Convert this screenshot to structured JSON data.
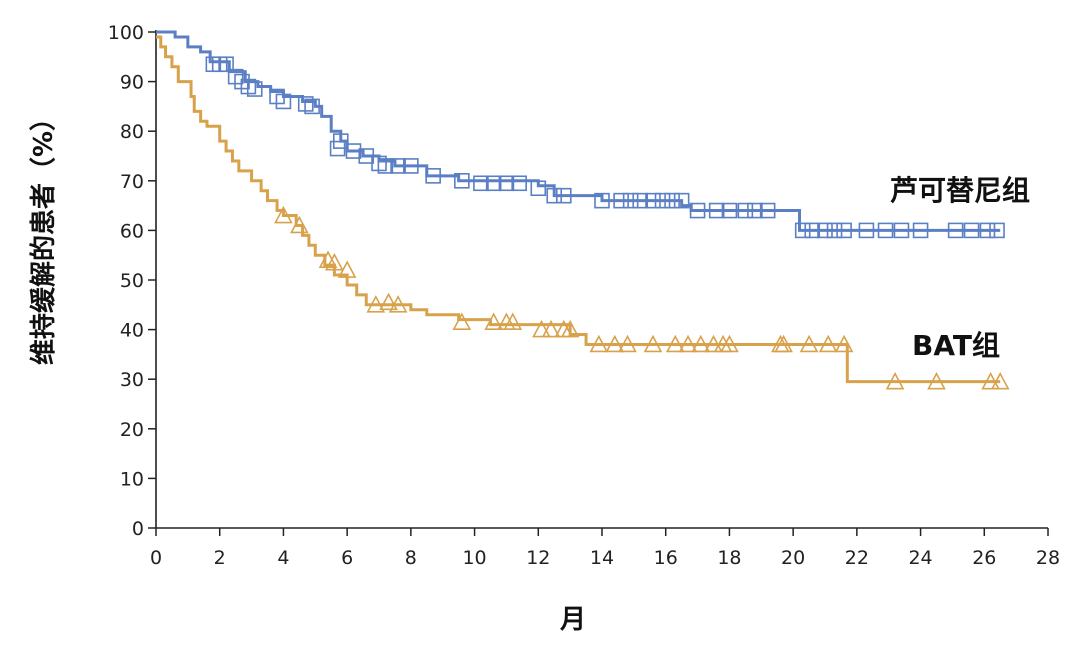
{
  "chart_data": {
    "type": "line",
    "title": "",
    "xlabel": "月",
    "ylabel": "维持缓解的患者（%）",
    "xlim": [
      0,
      28
    ],
    "ylim": [
      0,
      100
    ],
    "x_ticks": [
      0,
      2,
      4,
      6,
      8,
      10,
      12,
      14,
      16,
      18,
      20,
      22,
      24,
      26,
      28
    ],
    "y_ticks": [
      0,
      10,
      20,
      30,
      40,
      50,
      60,
      70,
      80,
      90,
      100
    ],
    "grid": false,
    "series": [
      {
        "name": "芦可替尼组",
        "color": "#5b7fc4",
        "marker": "square",
        "steps": [
          [
            0,
            100
          ],
          [
            0.6,
            99
          ],
          [
            1.0,
            97
          ],
          [
            1.4,
            96
          ],
          [
            1.7,
            94
          ],
          [
            2.3,
            92
          ],
          [
            2.8,
            90
          ],
          [
            3.2,
            89
          ],
          [
            3.6,
            88
          ],
          [
            4.0,
            87
          ],
          [
            4.6,
            86
          ],
          [
            5.0,
            85
          ],
          [
            5.2,
            83
          ],
          [
            5.5,
            80
          ],
          [
            5.8,
            78
          ],
          [
            6.0,
            76
          ],
          [
            6.5,
            75
          ],
          [
            7.0,
            74
          ],
          [
            7.5,
            73
          ],
          [
            8.5,
            71
          ],
          [
            9.5,
            70
          ],
          [
            12.0,
            69
          ],
          [
            12.5,
            67
          ],
          [
            14.0,
            66
          ],
          [
            16.5,
            65
          ],
          [
            16.8,
            64
          ],
          [
            20.2,
            60
          ],
          [
            26.5,
            60
          ]
        ],
        "censored": [
          [
            1.8,
            93.5
          ],
          [
            2.0,
            93.5
          ],
          [
            2.2,
            93.5
          ],
          [
            2.5,
            91
          ],
          [
            2.7,
            90
          ],
          [
            2.9,
            89
          ],
          [
            3.1,
            88.5
          ],
          [
            3.8,
            87
          ],
          [
            4.0,
            86
          ],
          [
            4.7,
            85.5
          ],
          [
            4.9,
            85
          ],
          [
            5.8,
            78
          ],
          [
            5.7,
            76.5
          ],
          [
            6.2,
            76
          ],
          [
            6.6,
            75
          ],
          [
            7.0,
            73.5
          ],
          [
            7.2,
            73
          ],
          [
            7.6,
            73
          ],
          [
            8.0,
            73
          ],
          [
            8.7,
            71
          ],
          [
            9.6,
            70
          ],
          [
            10.2,
            69.5
          ],
          [
            10.6,
            69.5
          ],
          [
            11.0,
            69.5
          ],
          [
            11.4,
            69.5
          ],
          [
            12.0,
            68.5
          ],
          [
            12.5,
            67
          ],
          [
            12.8,
            67
          ],
          [
            14.0,
            66
          ],
          [
            14.6,
            66
          ],
          [
            14.9,
            66
          ],
          [
            15.2,
            66
          ],
          [
            15.6,
            66
          ],
          [
            15.9,
            66
          ],
          [
            16.2,
            66
          ],
          [
            16.5,
            66
          ],
          [
            17.0,
            64
          ],
          [
            17.6,
            64
          ],
          [
            18.0,
            64
          ],
          [
            18.5,
            64
          ],
          [
            18.8,
            64
          ],
          [
            19.2,
            64
          ],
          [
            20.3,
            60
          ],
          [
            20.6,
            60
          ],
          [
            21.0,
            60
          ],
          [
            21.3,
            60
          ],
          [
            21.6,
            60
          ],
          [
            22.3,
            60
          ],
          [
            22.9,
            60
          ],
          [
            23.4,
            60
          ],
          [
            24.0,
            60
          ],
          [
            25.1,
            60
          ],
          [
            25.6,
            60
          ],
          [
            26.1,
            60
          ],
          [
            26.4,
            60
          ]
        ]
      },
      {
        "name": "BAT组",
        "color": "#d8a24c",
        "marker": "triangle",
        "steps": [
          [
            0,
            99
          ],
          [
            0.15,
            97
          ],
          [
            0.3,
            95
          ],
          [
            0.5,
            93
          ],
          [
            0.7,
            90
          ],
          [
            1.1,
            87
          ],
          [
            1.2,
            84
          ],
          [
            1.4,
            82
          ],
          [
            1.6,
            81
          ],
          [
            2.0,
            78
          ],
          [
            2.2,
            76
          ],
          [
            2.4,
            74
          ],
          [
            2.6,
            72
          ],
          [
            3.0,
            70
          ],
          [
            3.3,
            68
          ],
          [
            3.5,
            66
          ],
          [
            3.8,
            64
          ],
          [
            4.0,
            63
          ],
          [
            4.4,
            61
          ],
          [
            4.6,
            59
          ],
          [
            4.8,
            57
          ],
          [
            5.0,
            55
          ],
          [
            5.3,
            53
          ],
          [
            5.6,
            51
          ],
          [
            6.0,
            49
          ],
          [
            6.3,
            47
          ],
          [
            6.6,
            45
          ],
          [
            8.0,
            44
          ],
          [
            8.5,
            43
          ],
          [
            9.5,
            42
          ],
          [
            10.5,
            41
          ],
          [
            13.0,
            39
          ],
          [
            13.5,
            37
          ],
          [
            21.7,
            29.5
          ],
          [
            26.5,
            29.5
          ]
        ],
        "censored": [
          [
            4.0,
            63
          ],
          [
            4.5,
            61
          ],
          [
            5.4,
            54
          ],
          [
            5.6,
            53.5
          ],
          [
            6.0,
            52
          ],
          [
            6.9,
            45
          ],
          [
            7.3,
            45.5
          ],
          [
            7.6,
            45
          ],
          [
            9.6,
            41.5
          ],
          [
            10.6,
            41.5
          ],
          [
            11.0,
            41.5
          ],
          [
            11.2,
            41.5
          ],
          [
            12.1,
            40
          ],
          [
            12.4,
            40
          ],
          [
            12.8,
            40
          ],
          [
            13.0,
            40
          ],
          [
            13.9,
            37
          ],
          [
            14.4,
            37
          ],
          [
            14.8,
            37
          ],
          [
            15.6,
            37
          ],
          [
            16.3,
            37
          ],
          [
            16.7,
            37
          ],
          [
            17.1,
            37
          ],
          [
            17.5,
            37
          ],
          [
            17.8,
            37
          ],
          [
            18.0,
            37
          ],
          [
            19.6,
            37
          ],
          [
            19.7,
            37
          ],
          [
            20.5,
            37
          ],
          [
            21.1,
            37
          ],
          [
            21.6,
            37
          ],
          [
            23.2,
            29.5
          ],
          [
            24.5,
            29.5
          ],
          [
            26.2,
            29.5
          ],
          [
            26.5,
            29.5
          ]
        ]
      }
    ]
  }
}
